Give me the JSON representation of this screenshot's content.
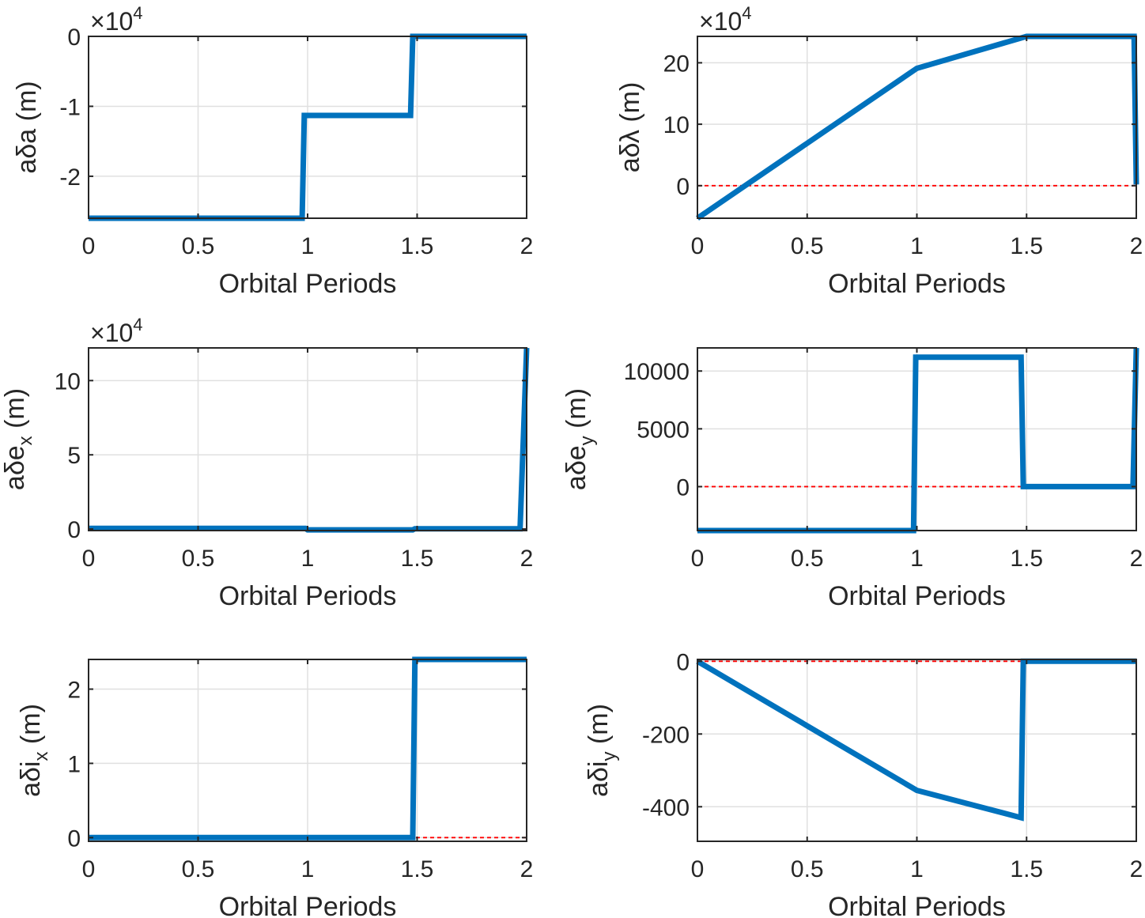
{
  "figure": {
    "background": "#ffffff"
  },
  "chart_data": [
    {
      "type": "line",
      "xlabel": "Orbital Periods",
      "ylabel": {
        "prefix": "a",
        "symbol": "δ",
        "var": "a",
        "sub": "",
        "unit": " (m)"
      },
      "xlim": [
        0,
        2
      ],
      "xticks": [
        0,
        0.5,
        1,
        1.5,
        2
      ],
      "ylim": [
        -2.6,
        0
      ],
      "yticks": [
        -2,
        -1,
        0
      ],
      "exponent": {
        "base": "×10",
        "power": "4"
      },
      "reference_y": 0,
      "series": [
        {
          "x": [
            0,
            0.975,
            0.985,
            1.47,
            1.48,
            2.0
          ],
          "y": [
            -2.6,
            -2.6,
            -1.13,
            -1.13,
            0,
            0
          ]
        }
      ]
    },
    {
      "type": "line",
      "xlabel": "Orbital Periods",
      "ylabel": {
        "prefix": "a",
        "symbol": "δλ",
        "var": "",
        "sub": "",
        "unit": " (m)"
      },
      "xlim": [
        0,
        2
      ],
      "xticks": [
        0,
        0.5,
        1,
        1.5,
        2
      ],
      "ylim": [
        -5.3,
        24.3
      ],
      "yticks": [
        0,
        10,
        20
      ],
      "exponent": {
        "base": "×10",
        "power": "4"
      },
      "reference_y": 0,
      "series": [
        {
          "x": [
            0,
            1.0,
            1.5,
            1.99,
            2.0
          ],
          "y": [
            -5.3,
            19.1,
            24.3,
            24.3,
            0.2
          ]
        }
      ]
    },
    {
      "type": "line",
      "xlabel": "Orbital Periods",
      "ylabel": {
        "prefix": "a",
        "symbol": "δ",
        "var": "e",
        "sub": "x",
        "unit": " (m)"
      },
      "xlim": [
        0,
        2
      ],
      "xticks": [
        0,
        0.5,
        1,
        1.5,
        2
      ],
      "ylim": [
        -0.1,
        12.2
      ],
      "yticks": [
        0,
        5,
        10
      ],
      "exponent": {
        "base": "×10",
        "power": "4"
      },
      "reference_y": 0,
      "series": [
        {
          "x": [
            0,
            0.99,
            1.0,
            1.48,
            1.49,
            1.97,
            2.0
          ],
          "y": [
            0.05,
            0.05,
            -0.05,
            -0.05,
            0.02,
            0.02,
            12.2
          ]
        }
      ]
    },
    {
      "type": "line",
      "xlabel": "Orbital Periods",
      "ylabel": {
        "prefix": "a",
        "symbol": "δ",
        "var": "e",
        "sub": "y",
        "unit": " (m)"
      },
      "xlim": [
        0,
        2
      ],
      "xticks": [
        0,
        0.5,
        1,
        1.5,
        2
      ],
      "ylim": [
        -3800,
        12000
      ],
      "yticks": [
        0,
        5000,
        10000
      ],
      "exponent": null,
      "reference_y": 0,
      "series": [
        {
          "x": [
            0,
            0.985,
            0.995,
            1.475,
            1.485,
            1.985,
            2.0
          ],
          "y": [
            -3800,
            -3800,
            11200,
            11200,
            0,
            0,
            12000
          ]
        }
      ]
    },
    {
      "type": "line",
      "xlabel": "Orbital Periods",
      "ylabel": {
        "prefix": "a",
        "symbol": "δ",
        "var": "i",
        "sub": "x",
        "unit": " (m)"
      },
      "xlim": [
        0,
        2
      ],
      "xticks": [
        0,
        0.5,
        1,
        1.5,
        2
      ],
      "ylim": [
        -0.05,
        2.4
      ],
      "yticks": [
        0,
        1,
        2
      ],
      "exponent": null,
      "reference_y": 0,
      "series": [
        {
          "x": [
            0,
            1.48,
            1.49,
            2.0
          ],
          "y": [
            0,
            0,
            2.4,
            2.4
          ]
        }
      ]
    },
    {
      "type": "line",
      "xlabel": "Orbital Periods",
      "ylabel": {
        "prefix": "a",
        "symbol": "δ",
        "var": "i",
        "sub": "y",
        "unit": " (m)"
      },
      "xlim": [
        0,
        2
      ],
      "xticks": [
        0,
        0.5,
        1,
        1.5,
        2
      ],
      "ylim": [
        -495,
        5
      ],
      "yticks": [
        -400,
        -200,
        0
      ],
      "exponent": null,
      "reference_y": 0,
      "series": [
        {
          "x": [
            0,
            1.0,
            1.475,
            1.485,
            2.0
          ],
          "y": [
            0,
            -355,
            -430,
            0,
            0
          ]
        }
      ]
    }
  ],
  "style": {
    "line_color": "#0072bd",
    "ref_color": "#ff0000",
    "axis_color": "#262626",
    "grid_color": "#e0e0e0"
  }
}
